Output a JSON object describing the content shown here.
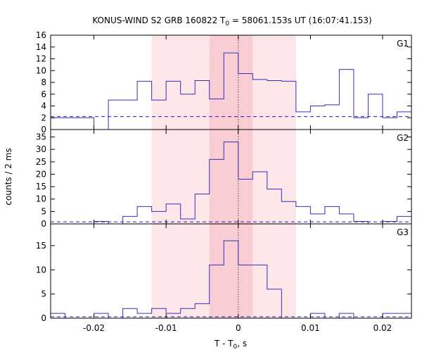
{
  "chart_data": {
    "type": "histogram",
    "title_prefix": "KONUS-WIND S2 GRB 160822 T",
    "title_sub": "0",
    "title_suffix": " = 58061.153s UT (16:07:41.153)",
    "xlabel_prefix": "T - T",
    "xlabel_sub": "0",
    "xlabel_suffix": ", s",
    "ylabel": "counts / 2 ms",
    "xlim": [
      -0.026,
      0.024
    ],
    "xticks": [
      -0.02,
      -0.01,
      0,
      0.01,
      0.02
    ],
    "xtick_labels": [
      "-0.02",
      "-0.01",
      "0",
      "0.01",
      "0.02"
    ],
    "shaded_outer": [
      -0.012,
      0.008
    ],
    "shaded_inner": [
      -0.004,
      0.002
    ],
    "colors": {
      "histogram": "#3030c0",
      "shade_outer": "#fde6e8",
      "shade_inner": "#f9cdd3",
      "background_line": "#2020b0",
      "t0_line": "#555555"
    },
    "panels": [
      {
        "name": "G1",
        "ylim": [
          0,
          16
        ],
        "yticks": [
          0,
          2,
          4,
          6,
          8,
          10,
          12,
          14,
          16
        ],
        "ytick_labels": [
          "0",
          "2",
          "4",
          "6",
          "8",
          "10",
          "12",
          "14",
          "16"
        ],
        "background": 2.2,
        "bins": [
          {
            "x0": -0.026,
            "x1": -0.02,
            "y": 2
          },
          {
            "x0": -0.02,
            "x1": -0.018,
            "y": 0
          },
          {
            "x0": -0.018,
            "x1": -0.014,
            "y": 5
          },
          {
            "x0": -0.014,
            "x1": -0.012,
            "y": 8.2
          },
          {
            "x0": -0.012,
            "x1": -0.01,
            "y": 5
          },
          {
            "x0": -0.01,
            "x1": -0.008,
            "y": 8.2
          },
          {
            "x0": -0.008,
            "x1": -0.006,
            "y": 6
          },
          {
            "x0": -0.006,
            "x1": -0.004,
            "y": 8.3
          },
          {
            "x0": -0.004,
            "x1": -0.002,
            "y": 5.2
          },
          {
            "x0": -0.002,
            "x1": 0,
            "y": 13
          },
          {
            "x0": 0,
            "x1": 0.002,
            "y": 9.5
          },
          {
            "x0": 0.002,
            "x1": 0.004,
            "y": 8.5
          },
          {
            "x0": 0.004,
            "x1": 0.006,
            "y": 8.3
          },
          {
            "x0": 0.006,
            "x1": 0.008,
            "y": 8.2
          },
          {
            "x0": 0.008,
            "x1": 0.01,
            "y": 3
          },
          {
            "x0": 0.01,
            "x1": 0.012,
            "y": 4
          },
          {
            "x0": 0.012,
            "x1": 0.014,
            "y": 4.2
          },
          {
            "x0": 0.014,
            "x1": 0.016,
            "y": 10.2
          },
          {
            "x0": 0.016,
            "x1": 0.018,
            "y": 2
          },
          {
            "x0": 0.018,
            "x1": 0.02,
            "y": 6
          },
          {
            "x0": 0.02,
            "x1": 0.022,
            "y": 2
          },
          {
            "x0": 0.022,
            "x1": 0.024,
            "y": 3
          }
        ]
      },
      {
        "name": "G2",
        "ylim": [
          0,
          38
        ],
        "yticks": [
          0,
          5,
          10,
          15,
          20,
          25,
          30,
          35
        ],
        "ytick_labels": [
          "0",
          "5",
          "10",
          "15",
          "20",
          "25",
          "30",
          "35"
        ],
        "background": 0.8,
        "bins": [
          {
            "x0": -0.026,
            "x1": -0.02,
            "y": 0
          },
          {
            "x0": -0.02,
            "x1": -0.018,
            "y": 1
          },
          {
            "x0": -0.018,
            "x1": -0.016,
            "y": 0
          },
          {
            "x0": -0.016,
            "x1": -0.014,
            "y": 3
          },
          {
            "x0": -0.014,
            "x1": -0.012,
            "y": 7
          },
          {
            "x0": -0.012,
            "x1": -0.01,
            "y": 5
          },
          {
            "x0": -0.01,
            "x1": -0.008,
            "y": 8
          },
          {
            "x0": -0.008,
            "x1": -0.006,
            "y": 2
          },
          {
            "x0": -0.006,
            "x1": -0.004,
            "y": 12
          },
          {
            "x0": -0.004,
            "x1": -0.002,
            "y": 26
          },
          {
            "x0": -0.002,
            "x1": 0,
            "y": 33
          },
          {
            "x0": 0,
            "x1": 0.002,
            "y": 18
          },
          {
            "x0": 0.002,
            "x1": 0.004,
            "y": 21
          },
          {
            "x0": 0.004,
            "x1": 0.006,
            "y": 14
          },
          {
            "x0": 0.006,
            "x1": 0.008,
            "y": 9
          },
          {
            "x0": 0.008,
            "x1": 0.01,
            "y": 7
          },
          {
            "x0": 0.01,
            "x1": 0.012,
            "y": 4
          },
          {
            "x0": 0.012,
            "x1": 0.014,
            "y": 7
          },
          {
            "x0": 0.014,
            "x1": 0.016,
            "y": 4
          },
          {
            "x0": 0.016,
            "x1": 0.018,
            "y": 1
          },
          {
            "x0": 0.018,
            "x1": 0.02,
            "y": 0
          },
          {
            "x0": 0.02,
            "x1": 0.022,
            "y": 1
          },
          {
            "x0": 0.022,
            "x1": 0.024,
            "y": 3
          }
        ]
      },
      {
        "name": "G3",
        "ylim": [
          0,
          19.5
        ],
        "yticks": [
          0,
          5,
          10,
          15
        ],
        "ytick_labels": [
          "0",
          "5",
          "10",
          "15"
        ],
        "background": 0.3,
        "bins": [
          {
            "x0": -0.026,
            "x1": -0.024,
            "y": 1
          },
          {
            "x0": -0.024,
            "x1": -0.02,
            "y": 0
          },
          {
            "x0": -0.02,
            "x1": -0.018,
            "y": 1
          },
          {
            "x0": -0.018,
            "x1": -0.016,
            "y": 0
          },
          {
            "x0": -0.016,
            "x1": -0.014,
            "y": 2
          },
          {
            "x0": -0.014,
            "x1": -0.012,
            "y": 1
          },
          {
            "x0": -0.012,
            "x1": -0.01,
            "y": 2
          },
          {
            "x0": -0.01,
            "x1": -0.008,
            "y": 1
          },
          {
            "x0": -0.008,
            "x1": -0.006,
            "y": 2
          },
          {
            "x0": -0.006,
            "x1": -0.004,
            "y": 3
          },
          {
            "x0": -0.004,
            "x1": -0.002,
            "y": 11
          },
          {
            "x0": -0.002,
            "x1": 0,
            "y": 16
          },
          {
            "x0": 0,
            "x1": 0.004,
            "y": 11
          },
          {
            "x0": 0.004,
            "x1": 0.006,
            "y": 6
          },
          {
            "x0": 0.006,
            "x1": 0.01,
            "y": 0
          },
          {
            "x0": 0.01,
            "x1": 0.012,
            "y": 1
          },
          {
            "x0": 0.012,
            "x1": 0.014,
            "y": 0
          },
          {
            "x0": 0.014,
            "x1": 0.016,
            "y": 1
          },
          {
            "x0": 0.016,
            "x1": 0.02,
            "y": 0
          },
          {
            "x0": 0.02,
            "x1": 0.024,
            "y": 1
          }
        ]
      }
    ]
  }
}
